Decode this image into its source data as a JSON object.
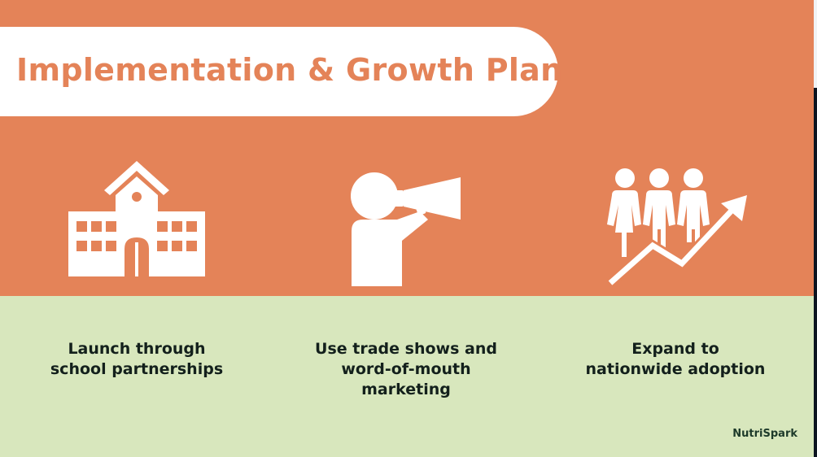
{
  "title": "Implementation & Growth Plan",
  "colors": {
    "accent": "#e48358",
    "light_green": "#d8e7bd",
    "text_dark": "#13201c",
    "brand": "#1d3a2a"
  },
  "steps": [
    {
      "icon": "school-building-icon",
      "lines": [
        "Launch through",
        "school partnerships"
      ]
    },
    {
      "icon": "megaphone-person-icon",
      "lines": [
        "Use trade shows and",
        "word-of-mouth",
        "marketing"
      ]
    },
    {
      "icon": "people-growth-arrow-icon",
      "lines": [
        "Expand to",
        "nationwide adoption"
      ]
    }
  ],
  "brand": "NutriSpark"
}
